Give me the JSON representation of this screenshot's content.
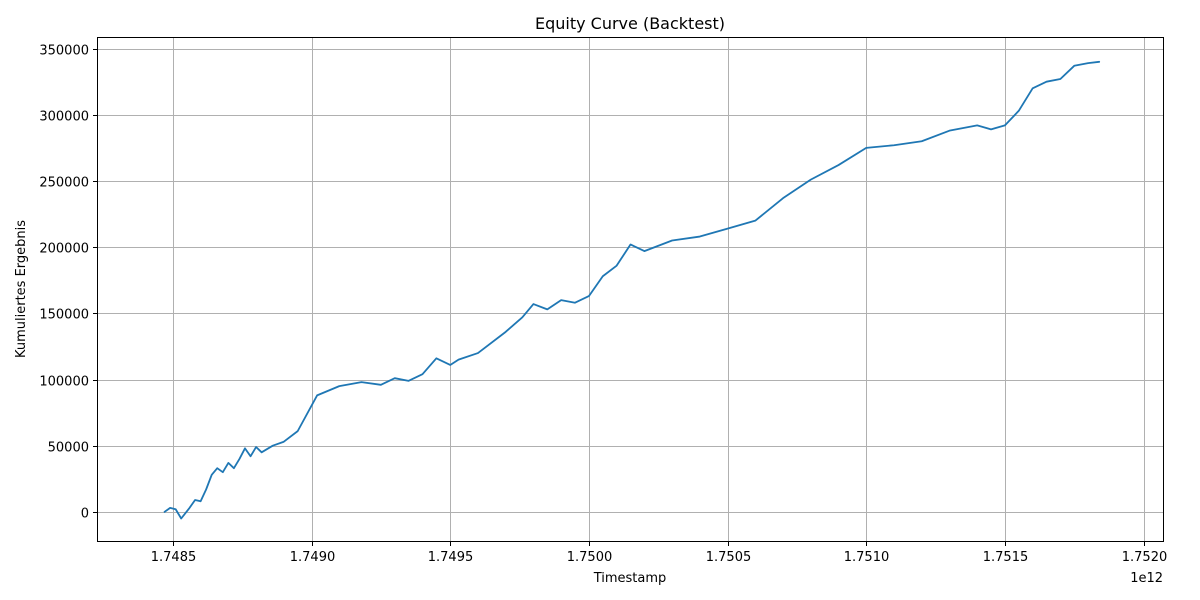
{
  "chart_data": {
    "type": "line",
    "title": "Equity Curve (Backtest)",
    "xlabel": "Timestamp",
    "ylabel": "Kumuliertes Ergebnis",
    "x_offset_label": "1e12",
    "xlim": [
      1.74823,
      1.75207
    ],
    "ylim": [
      -22000,
      358000
    ],
    "x_ticks": [
      1.7485,
      1.749,
      1.7495,
      1.75,
      1.7505,
      1.751,
      1.7515,
      1.752
    ],
    "x_tick_labels": [
      "1.7485",
      "1.7490",
      "1.7495",
      "1.7500",
      "1.7505",
      "1.7510",
      "1.7515",
      "1.7520"
    ],
    "y_ticks": [
      0,
      50000,
      100000,
      150000,
      200000,
      250000,
      300000,
      350000
    ],
    "y_tick_labels": [
      "0",
      "50000",
      "100000",
      "150000",
      "200000",
      "250000",
      "300000",
      "350000"
    ],
    "grid": true,
    "line_color": "#1f77b4",
    "series": [
      {
        "name": "",
        "x": [
          1.74847,
          1.74849,
          1.74851,
          1.74853,
          1.74856,
          1.74858,
          1.7486,
          1.74862,
          1.74864,
          1.74866,
          1.74868,
          1.7487,
          1.74872,
          1.74874,
          1.74876,
          1.74878,
          1.7488,
          1.74882,
          1.74886,
          1.7489,
          1.74895,
          1.74902,
          1.7491,
          1.74918,
          1.74925,
          1.7493,
          1.74935,
          1.7494,
          1.74945,
          1.7495,
          1.74953,
          1.7496,
          1.7497,
          1.74976,
          1.7498,
          1.74985,
          1.7499,
          1.74995,
          1.75,
          1.75005,
          1.7501,
          1.75015,
          1.7502,
          1.7503,
          1.7504,
          1.7505,
          1.7506,
          1.7507,
          1.7508,
          1.7509,
          1.751,
          1.7511,
          1.7512,
          1.7513,
          1.7514,
          1.75145,
          1.7515,
          1.75155,
          1.7516,
          1.75165,
          1.7517,
          1.75175,
          1.7518,
          1.75184
        ],
        "y": [
          0,
          3000,
          2000,
          -5000,
          3000,
          9000,
          8000,
          17000,
          28000,
          33000,
          30000,
          37000,
          33000,
          40000,
          48000,
          42000,
          49000,
          45000,
          50000,
          53000,
          61000,
          88000,
          95000,
          98000,
          96000,
          101000,
          99000,
          104000,
          116000,
          111000,
          115000,
          120000,
          136000,
          147000,
          157000,
          153000,
          160000,
          158000,
          163000,
          178000,
          186000,
          202000,
          197000,
          205000,
          208000,
          214000,
          220000,
          237000,
          251000,
          262000,
          275000,
          277000,
          280000,
          288000,
          292000,
          289000,
          292000,
          303000,
          320000,
          325000,
          327000,
          337000,
          339000,
          340000
        ]
      }
    ]
  }
}
